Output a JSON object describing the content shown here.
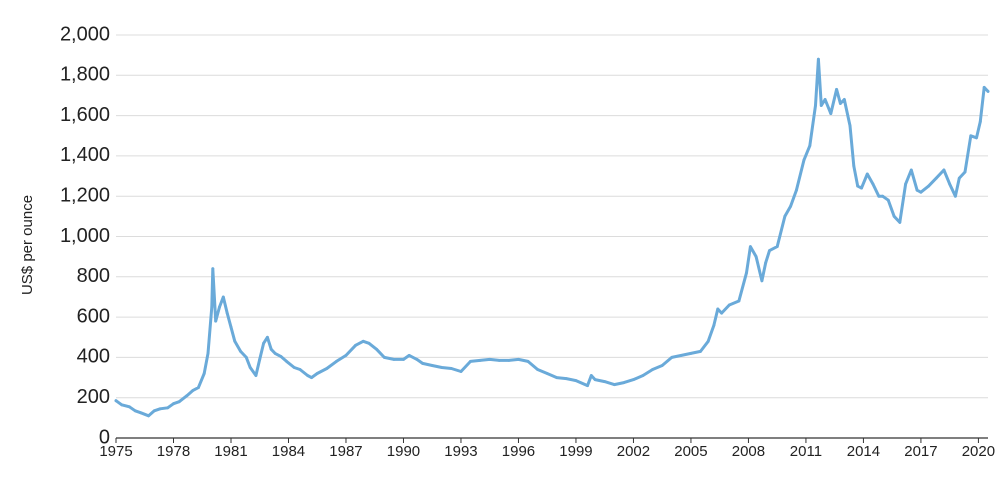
{
  "chart_data": {
    "type": "line",
    "title": "",
    "xlabel": "",
    "ylabel": "US$ per ounce",
    "ylim": [
      0,
      2000
    ],
    "xlim": [
      1975,
      2020.5
    ],
    "grid": true,
    "legend": "none",
    "y_ticks": [
      0,
      200,
      400,
      600,
      800,
      1000,
      1200,
      1400,
      1600,
      1800,
      2000
    ],
    "y_tick_labels": [
      "0",
      "200",
      "400",
      "600",
      "800",
      "1,000",
      "1,200",
      "1,400",
      "1,600",
      "1,800",
      "2,000"
    ],
    "x_ticks": [
      1975,
      1978,
      1981,
      1984,
      1987,
      1990,
      1993,
      1996,
      1999,
      2002,
      2005,
      2008,
      2011,
      2014,
      2017,
      2020
    ],
    "x_tick_labels": [
      "1975",
      "1978",
      "1981",
      "1984",
      "1987",
      "1990",
      "1993",
      "1996",
      "1999",
      "2002",
      "2005",
      "2008",
      "2011",
      "2014",
      "2017",
      "2020"
    ],
    "series": [
      {
        "color": "#6aaad9",
        "x": [
          1975.0,
          1975.3,
          1975.7,
          1976.0,
          1976.3,
          1976.7,
          1977.0,
          1977.3,
          1977.7,
          1978.0,
          1978.3,
          1978.7,
          1979.0,
          1979.3,
          1979.6,
          1979.8,
          1980.0,
          1980.05,
          1980.2,
          1980.4,
          1980.6,
          1980.8,
          1981.0,
          1981.2,
          1981.5,
          1981.8,
          1982.0,
          1982.3,
          1982.5,
          1982.7,
          1982.9,
          1983.1,
          1983.3,
          1983.6,
          1983.9,
          1984.3,
          1984.6,
          1985.0,
          1985.2,
          1985.5,
          1986.0,
          1986.5,
          1987.0,
          1987.5,
          1987.9,
          1988.2,
          1988.6,
          1989.0,
          1989.5,
          1990.0,
          1990.3,
          1990.7,
          1991.0,
          1991.5,
          1992.0,
          1992.5,
          1993.0,
          1993.5,
          1994.0,
          1994.5,
          1995.0,
          1995.5,
          1996.0,
          1996.5,
          1997.0,
          1997.5,
          1998.0,
          1998.5,
          1999.0,
          1999.6,
          1999.8,
          2000.0,
          2000.5,
          2001.0,
          2001.5,
          2002.0,
          2002.5,
          2003.0,
          2003.5,
          2004.0,
          2004.5,
          2005.0,
          2005.5,
          2005.9,
          2006.2,
          2006.4,
          2006.6,
          2007.0,
          2007.5,
          2007.9,
          2008.1,
          2008.4,
          2008.7,
          2008.9,
          2009.1,
          2009.5,
          2009.9,
          2010.2,
          2010.5,
          2010.9,
          2011.2,
          2011.5,
          2011.65,
          2011.8,
          2012.0,
          2012.3,
          2012.6,
          2012.8,
          2013.0,
          2013.3,
          2013.5,
          2013.7,
          2013.9,
          2014.2,
          2014.5,
          2014.8,
          2015.0,
          2015.3,
          2015.6,
          2015.9,
          2016.2,
          2016.5,
          2016.8,
          2017.0,
          2017.4,
          2017.8,
          2018.2,
          2018.5,
          2018.8,
          2019.0,
          2019.3,
          2019.6,
          2019.9,
          2020.1,
          2020.3,
          2020.5
        ],
        "y": [
          185,
          165,
          155,
          135,
          125,
          110,
          135,
          145,
          150,
          170,
          180,
          210,
          235,
          250,
          320,
          420,
          650,
          840,
          580,
          650,
          700,
          620,
          550,
          480,
          430,
          400,
          350,
          310,
          390,
          470,
          500,
          440,
          420,
          405,
          380,
          350,
          340,
          310,
          300,
          320,
          345,
          380,
          410,
          460,
          480,
          470,
          440,
          400,
          390,
          390,
          410,
          390,
          370,
          360,
          350,
          345,
          330,
          380,
          385,
          390,
          385,
          385,
          390,
          380,
          340,
          320,
          300,
          295,
          285,
          260,
          310,
          290,
          280,
          265,
          275,
          290,
          310,
          340,
          360,
          400,
          410,
          420,
          430,
          480,
          560,
          640,
          620,
          660,
          680,
          820,
          950,
          900,
          780,
          870,
          930,
          950,
          1100,
          1150,
          1230,
          1380,
          1450,
          1650,
          1880,
          1650,
          1680,
          1610,
          1730,
          1660,
          1680,
          1550,
          1350,
          1250,
          1240,
          1310,
          1260,
          1200,
          1200,
          1180,
          1100,
          1070,
          1260,
          1330,
          1230,
          1220,
          1250,
          1290,
          1330,
          1260,
          1200,
          1290,
          1320,
          1500,
          1490,
          1570,
          1740,
          1720
        ]
      }
    ]
  }
}
